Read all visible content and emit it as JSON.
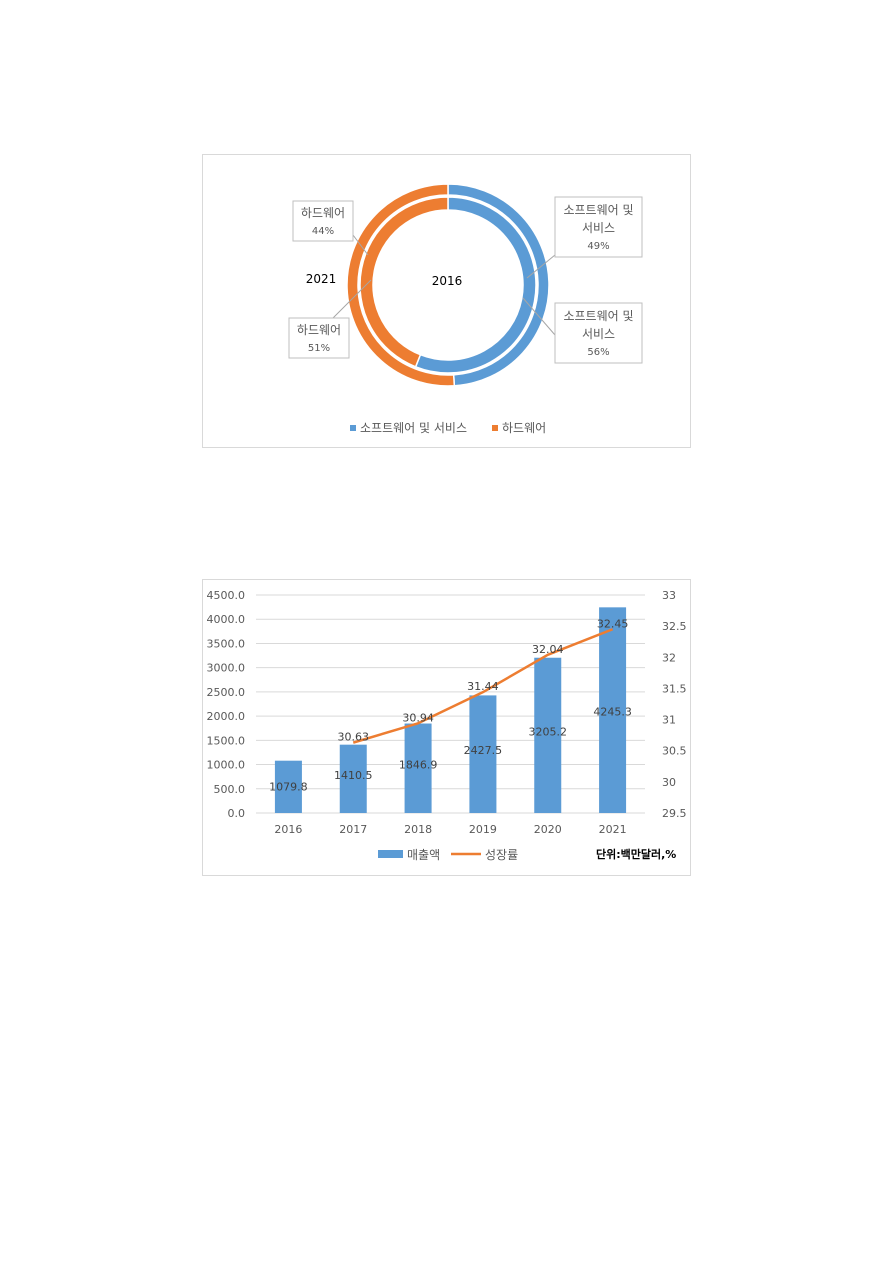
{
  "colors": {
    "blue": "#5b9bd5",
    "orange": "#ed7d31",
    "grid": "#d9d9d9",
    "text": "#595959",
    "dark": "#000000"
  },
  "chart_data": [
    {
      "type": "pie",
      "subtype": "doughnut",
      "rings": [
        {
          "name": "2016",
          "position": "inner",
          "slices": [
            {
              "label": "소프트웨어 및 서비스",
              "pct_label": "56%",
              "value": 56
            },
            {
              "label": "하드웨어",
              "pct_label": "44%",
              "value": 44
            }
          ]
        },
        {
          "name": "2021",
          "position": "outer",
          "slices": [
            {
              "label": "소프트웨어 및 서비스",
              "pct_label": "49%",
              "value": 49
            },
            {
              "label": "하드웨어",
              "pct_label": "51%",
              "value": 51
            }
          ]
        }
      ],
      "callouts": [
        {
          "line1": "소프트웨어 및",
          "line2": "서비스",
          "pct": "49%"
        },
        {
          "line1": "소프트웨어 및",
          "line2": "서비스",
          "pct": "56%"
        },
        {
          "line1": "하드웨어",
          "line2": "",
          "pct": "44%"
        },
        {
          "line1": "하드웨어",
          "line2": "",
          "pct": "51%"
        }
      ],
      "legend": [
        "소프트웨어 및 서비스",
        "하드웨어"
      ],
      "legend_position": "bottom"
    },
    {
      "type": "bar",
      "subtype": "bar+line, dual axis",
      "categories": [
        "2016",
        "2017",
        "2018",
        "2019",
        "2020",
        "2021"
      ],
      "series": [
        {
          "name": "매출액",
          "type": "bar",
          "axis": "left",
          "values": [
            1079.8,
            1410.5,
            1846.9,
            2427.5,
            3205.2,
            4245.3
          ],
          "labels": [
            "1079.8",
            "1410.5",
            "1846.9",
            "2427.5",
            "3205.2",
            "4245.3"
          ]
        },
        {
          "name": "성장률",
          "type": "line",
          "axis": "right",
          "values": [
            null,
            30.63,
            30.94,
            31.44,
            32.04,
            32.45
          ],
          "labels": [
            "",
            "30.63",
            "30.94",
            "31.44",
            "32.04",
            "32.45"
          ]
        }
      ],
      "y_left": {
        "ylim": [
          0,
          4500
        ],
        "ticks": [
          "0.0",
          "500.0",
          "1000.0",
          "1500.0",
          "2000.0",
          "2500.0",
          "3000.0",
          "3500.0",
          "4000.0",
          "4500.0"
        ]
      },
      "y_right": {
        "ylim": [
          29.5,
          33
        ],
        "ticks": [
          "29.5",
          "30",
          "30.5",
          "31",
          "31.5",
          "32",
          "32.5",
          "33"
        ]
      },
      "grid": true,
      "legend_position": "bottom",
      "unit_note": "단위:백만달러,%"
    }
  ]
}
